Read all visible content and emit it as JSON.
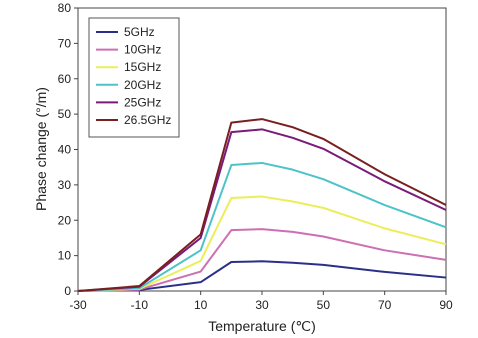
{
  "chart_data": {
    "type": "line",
    "x": [
      "-30",
      "-10",
      "10",
      "20",
      "30",
      "40",
      "50",
      "70",
      "90"
    ],
    "xlabel": "Temperature (℃)",
    "ylabel": "Phase change (°/m)",
    "ylim": [
      0,
      80
    ],
    "yticks": [
      "0",
      "10",
      "20",
      "30",
      "40",
      "50",
      "60",
      "70",
      "80"
    ],
    "xticks": [
      "-30",
      "-10",
      "10",
      "30",
      "50",
      "70",
      "90"
    ],
    "grid": false,
    "legend_position": "top-left",
    "series": [
      {
        "name": "5GHz",
        "color": "#2b2f8a",
        "values": [
          0,
          0.3,
          2.5,
          8.2,
          8.4,
          8.0,
          7.4,
          5.4,
          3.8
        ]
      },
      {
        "name": "10GHz",
        "color": "#cc6fb3",
        "values": [
          0,
          0.4,
          5.5,
          17.2,
          17.5,
          16.7,
          15.4,
          11.5,
          8.8
        ]
      },
      {
        "name": "15GHz",
        "color": "#eded5a",
        "values": [
          0,
          0.6,
          8.5,
          26.3,
          26.7,
          25.3,
          23.5,
          17.7,
          13.2
        ]
      },
      {
        "name": "20GHz",
        "color": "#4dc3c7",
        "values": [
          0,
          0.8,
          11.5,
          35.6,
          36.2,
          34.3,
          31.6,
          24.3,
          18.0
        ]
      },
      {
        "name": "25GHz",
        "color": "#7a1a7a",
        "values": [
          0,
          1.2,
          15.0,
          44.9,
          45.7,
          43.3,
          40.2,
          31.0,
          22.9
        ]
      },
      {
        "name": "26.5GHz",
        "color": "#7a1f1f",
        "values": [
          0,
          1.4,
          16.0,
          47.6,
          48.6,
          46.3,
          43.0,
          33.0,
          24.3
        ]
      }
    ]
  }
}
